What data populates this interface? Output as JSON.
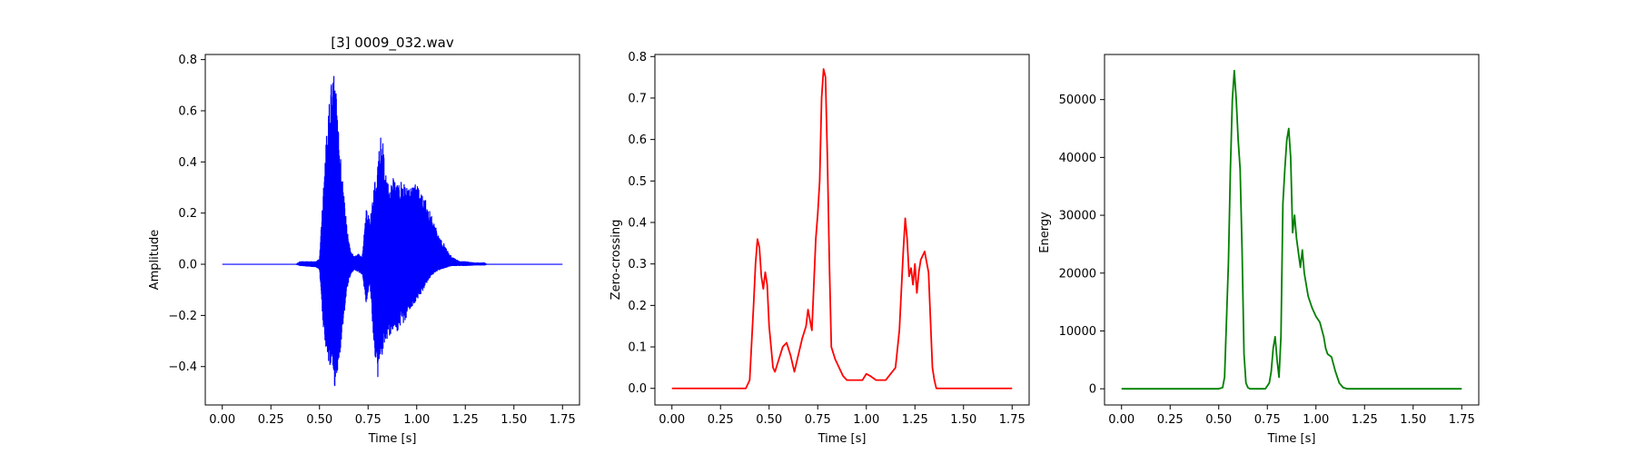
{
  "chart_data": [
    {
      "type": "line",
      "title": "[3] 0009_032.wav",
      "xlabel": "Time [s]",
      "ylabel": "Amplitude",
      "xlim": [
        -0.0875,
        1.8375
      ],
      "ylim": [
        -0.55,
        0.82
      ],
      "xticks": [
        0.0,
        0.25,
        0.5,
        0.75,
        1.0,
        1.25,
        1.5,
        1.75
      ],
      "xtick_labels": [
        "0.00",
        "0.25",
        "0.50",
        "0.75",
        "1.00",
        "1.25",
        "1.50",
        "1.75"
      ],
      "yticks": [
        -0.4,
        -0.2,
        0.0,
        0.2,
        0.4,
        0.6,
        0.8
      ],
      "ytick_labels": [
        "−0.4",
        "−0.2",
        "0.0",
        "0.2",
        "0.4",
        "0.6",
        "0.8"
      ],
      "grid": false,
      "color": "#0000ff",
      "envelope": {
        "t": [
          0.0,
          0.38,
          0.4,
          0.48,
          0.5,
          0.52,
          0.54,
          0.56,
          0.58,
          0.6,
          0.62,
          0.64,
          0.66,
          0.68,
          0.7,
          0.72,
          0.74,
          0.76,
          0.78,
          0.8,
          0.82,
          0.84,
          0.86,
          0.88,
          0.9,
          0.92,
          0.94,
          0.96,
          0.98,
          1.0,
          1.02,
          1.04,
          1.06,
          1.08,
          1.1,
          1.12,
          1.14,
          1.16,
          1.18,
          1.2,
          1.22,
          1.25,
          1.3,
          1.35,
          1.36,
          1.75
        ],
        "upper": [
          0.0,
          0.0,
          0.01,
          0.01,
          0.02,
          0.3,
          0.55,
          0.7,
          0.76,
          0.5,
          0.32,
          0.15,
          0.05,
          0.03,
          0.04,
          0.03,
          0.22,
          0.18,
          0.3,
          0.4,
          0.53,
          0.35,
          0.3,
          0.35,
          0.33,
          0.32,
          0.31,
          0.3,
          0.32,
          0.31,
          0.28,
          0.26,
          0.22,
          0.18,
          0.14,
          0.1,
          0.08,
          0.05,
          0.03,
          0.02,
          0.01,
          0.01,
          0.005,
          0.005,
          0.0,
          0.0
        ],
        "lower": [
          0.0,
          0.0,
          -0.005,
          -0.01,
          -0.02,
          -0.25,
          -0.38,
          -0.4,
          -0.49,
          -0.38,
          -0.25,
          -0.1,
          -0.04,
          -0.02,
          -0.03,
          -0.04,
          -0.15,
          -0.08,
          -0.32,
          -0.44,
          -0.36,
          -0.3,
          -0.28,
          -0.25,
          -0.26,
          -0.24,
          -0.22,
          -0.18,
          -0.16,
          -0.14,
          -0.12,
          -0.09,
          -0.06,
          -0.04,
          -0.03,
          -0.02,
          -0.015,
          -0.01,
          -0.005,
          -0.005,
          -0.005,
          -0.005,
          -0.003,
          -0.003,
          0.0,
          0.0
        ]
      }
    },
    {
      "type": "line",
      "title": "",
      "xlabel": "Time [s]",
      "ylabel": "Zero-crossing",
      "xlim": [
        -0.0875,
        1.8375
      ],
      "ylim": [
        -0.04,
        0.805
      ],
      "xticks": [
        0.0,
        0.25,
        0.5,
        0.75,
        1.0,
        1.25,
        1.5,
        1.75
      ],
      "xtick_labels": [
        "0.00",
        "0.25",
        "0.50",
        "0.75",
        "1.00",
        "1.25",
        "1.50",
        "1.75"
      ],
      "yticks": [
        0.0,
        0.1,
        0.2,
        0.3,
        0.4,
        0.5,
        0.6,
        0.7,
        0.8
      ],
      "ytick_labels": [
        "0.0",
        "0.1",
        "0.2",
        "0.3",
        "0.4",
        "0.5",
        "0.6",
        "0.7",
        "0.8"
      ],
      "grid": false,
      "color": "#ff0000",
      "x": [
        0.0,
        0.38,
        0.4,
        0.42,
        0.43,
        0.44,
        0.45,
        0.46,
        0.47,
        0.48,
        0.49,
        0.5,
        0.52,
        0.53,
        0.55,
        0.57,
        0.59,
        0.61,
        0.63,
        0.65,
        0.67,
        0.69,
        0.7,
        0.72,
        0.73,
        0.74,
        0.75,
        0.76,
        0.77,
        0.78,
        0.79,
        0.8,
        0.81,
        0.82,
        0.84,
        0.86,
        0.88,
        0.9,
        0.93,
        0.96,
        0.98,
        1.0,
        1.02,
        1.05,
        1.1,
        1.15,
        1.17,
        1.19,
        1.2,
        1.21,
        1.22,
        1.23,
        1.24,
        1.25,
        1.26,
        1.27,
        1.28,
        1.3,
        1.32,
        1.34,
        1.35,
        1.36,
        1.75
      ],
      "y": [
        0.0,
        0.0,
        0.02,
        0.2,
        0.3,
        0.36,
        0.34,
        0.27,
        0.24,
        0.28,
        0.25,
        0.15,
        0.05,
        0.04,
        0.07,
        0.1,
        0.11,
        0.08,
        0.04,
        0.08,
        0.12,
        0.15,
        0.19,
        0.14,
        0.25,
        0.36,
        0.42,
        0.5,
        0.7,
        0.77,
        0.75,
        0.55,
        0.3,
        0.1,
        0.07,
        0.05,
        0.03,
        0.02,
        0.02,
        0.02,
        0.02,
        0.035,
        0.03,
        0.02,
        0.02,
        0.05,
        0.14,
        0.33,
        0.41,
        0.36,
        0.27,
        0.29,
        0.25,
        0.3,
        0.23,
        0.28,
        0.31,
        0.33,
        0.28,
        0.05,
        0.02,
        0.0,
        0.0
      ]
    },
    {
      "type": "line",
      "title": "",
      "xlabel": "Time [s]",
      "ylabel": "Energy",
      "xlim": [
        -0.0875,
        1.8375
      ],
      "ylim": [
        -2800,
        57800
      ],
      "xticks": [
        0.0,
        0.25,
        0.5,
        0.75,
        1.0,
        1.25,
        1.5,
        1.75
      ],
      "xtick_labels": [
        "0.00",
        "0.25",
        "0.50",
        "0.75",
        "1.00",
        "1.25",
        "1.50",
        "1.75"
      ],
      "yticks": [
        0,
        10000,
        20000,
        30000,
        40000,
        50000
      ],
      "ytick_labels": [
        "0",
        "10000",
        "20000",
        "30000",
        "40000",
        "50000"
      ],
      "grid": false,
      "color": "#008000",
      "x": [
        0.0,
        0.5,
        0.52,
        0.53,
        0.54,
        0.55,
        0.56,
        0.57,
        0.58,
        0.59,
        0.6,
        0.61,
        0.62,
        0.63,
        0.64,
        0.65,
        0.66,
        0.7,
        0.74,
        0.76,
        0.77,
        0.78,
        0.79,
        0.8,
        0.81,
        0.82,
        0.83,
        0.84,
        0.85,
        0.86,
        0.87,
        0.88,
        0.89,
        0.9,
        0.92,
        0.93,
        0.94,
        0.95,
        0.96,
        0.98,
        1.0,
        1.02,
        1.04,
        1.05,
        1.06,
        1.08,
        1.1,
        1.12,
        1.14,
        1.16,
        1.2,
        1.75
      ],
      "y": [
        0,
        0,
        200,
        2000,
        12000,
        22000,
        38000,
        50000,
        55000,
        50000,
        43000,
        38000,
        24000,
        6000,
        1000,
        200,
        0,
        0,
        0,
        1000,
        3000,
        7000,
        9000,
        5000,
        2000,
        9000,
        32000,
        38000,
        43000,
        45000,
        40000,
        27000,
        30000,
        26000,
        21000,
        24000,
        20000,
        18000,
        16000,
        14000,
        12500,
        11500,
        9000,
        7000,
        6000,
        5500,
        3000,
        1000,
        200,
        0,
        0,
        0
      ]
    }
  ]
}
